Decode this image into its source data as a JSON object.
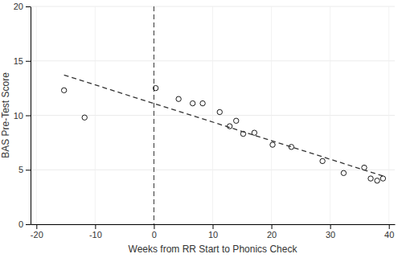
{
  "chart_data": {
    "type": "scatter",
    "x_label": "Weeks from RR Start to Phonics Check",
    "y_label": "BAS Pre-Test Score",
    "xlim": [
      -21,
      41
    ],
    "ylim": [
      0,
      20
    ],
    "xticks": [
      -20,
      -10,
      0,
      10,
      20,
      30,
      40
    ],
    "yticks": [
      0,
      5,
      10,
      15,
      20
    ],
    "grid": true,
    "series": [
      {
        "type": "scatter",
        "marker": "circle",
        "color": "#1a1a1a",
        "x": [
          -15.3,
          -11.8,
          0.3,
          4.2,
          6.6,
          8.3,
          11.2,
          12.9,
          14.0,
          15.2,
          17.1,
          20.2,
          23.4,
          28.7,
          32.3,
          35.8,
          36.9,
          38.0,
          39.0
        ],
        "values": [
          12.3,
          9.8,
          12.5,
          11.5,
          11.1,
          11.1,
          10.3,
          9.0,
          9.5,
          8.3,
          8.4,
          7.3,
          7.1,
          5.8,
          4.7,
          5.2,
          4.2,
          4.0,
          4.2
        ]
      },
      {
        "type": "line",
        "line_style": "dashed",
        "color": "#333333",
        "x": [
          -15.3,
          39.2
        ],
        "values": [
          13.7,
          4.4
        ]
      }
    ],
    "vertical_line": {
      "x": 0,
      "line_style": "dashed",
      "color": "#333333"
    }
  }
}
